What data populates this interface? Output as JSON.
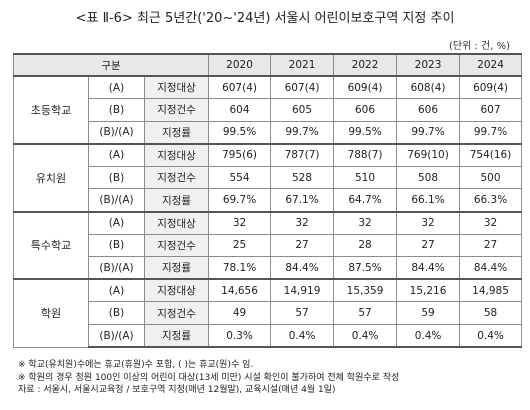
{
  "title": "<표 Ⅱ-6> 최근 5년간('20~'24년) 서울시 어린이보호구역 지정 추이",
  "unit": "(단위 : 건, %)",
  "header": {
    "category": "구분",
    "years": [
      "2020",
      "2021",
      "2022",
      "2023",
      "2024"
    ]
  },
  "groups": [
    {
      "name": "초등학교",
      "rows": [
        {
          "code": "(A)",
          "metric": "지정대상",
          "values": [
            "607(4)",
            "607(4)",
            "609(4)",
            "608(4)",
            "609(4)"
          ]
        },
        {
          "code": "(B)",
          "metric": "지정건수",
          "values": [
            "604",
            "605",
            "606",
            "606",
            "607"
          ]
        },
        {
          "code": "(B)/(A)",
          "metric": "지정률",
          "values": [
            "99.5%",
            "99.7%",
            "99.5%",
            "99.7%",
            "99.7%"
          ]
        }
      ]
    },
    {
      "name": "유치원",
      "rows": [
        {
          "code": "(A)",
          "metric": "지정대상",
          "values": [
            "795(6)",
            "787(7)",
            "788(7)",
            "769(10)",
            "754(16)"
          ]
        },
        {
          "code": "(B)",
          "metric": "지정건수",
          "values": [
            "554",
            "528",
            "510",
            "508",
            "500"
          ]
        },
        {
          "code": "(B)/(A)",
          "metric": "지정률",
          "values": [
            "69.7%",
            "67.1%",
            "64.7%",
            "66.1%",
            "66.3%"
          ]
        }
      ]
    },
    {
      "name": "특수학교",
      "rows": [
        {
          "code": "(A)",
          "metric": "지정대상",
          "values": [
            "32",
            "32",
            "32",
            "32",
            "32"
          ]
        },
        {
          "code": "(B)",
          "metric": "지정건수",
          "values": [
            "25",
            "27",
            "28",
            "27",
            "27"
          ]
        },
        {
          "code": "(B)/(A)",
          "metric": "지정률",
          "values": [
            "78.1%",
            "84.4%",
            "87.5%",
            "84.4%",
            "84.4%"
          ]
        }
      ]
    },
    {
      "name": "학원",
      "rows": [
        {
          "code": "(A)",
          "metric": "지정대상",
          "values": [
            "14,656",
            "14,919",
            "15,359",
            "15,216",
            "14,985"
          ]
        },
        {
          "code": "(B)",
          "metric": "지정건수",
          "values": [
            "49",
            "57",
            "57",
            "59",
            "58"
          ]
        },
        {
          "code": "(B)/(A)",
          "metric": "지정률",
          "values": [
            "0.3%",
            "0.4%",
            "0.4%",
            "0.4%",
            "0.4%"
          ]
        }
      ]
    }
  ],
  "notes": [
    "※ 학교(유치원)수에는 휴교(휴원)수 포함, ( )는 휴교(원)수 임.",
    "※ 학원의 경우 정원 100인 이상의 어린이 대상(13세 미만) 시설 확인이 불가하여 전체 학원수로 작성",
    "자료 : 서울시, 서울시교육청 / 보호구역 지정(매년 12월말), 교육시설(매년 4월 1일)"
  ]
}
